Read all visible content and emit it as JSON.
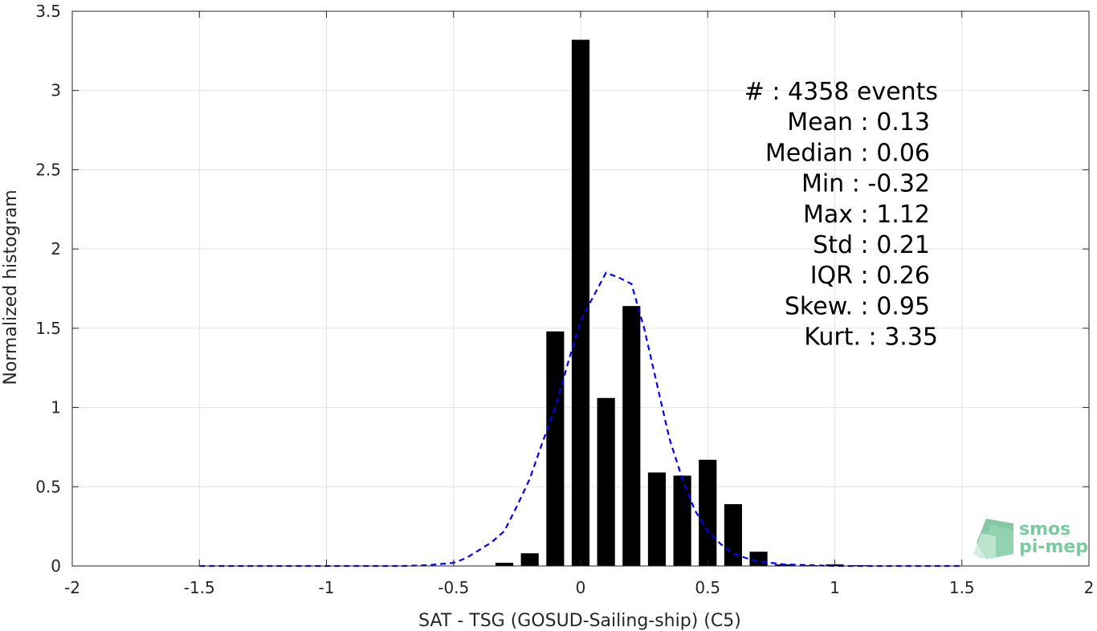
{
  "chart_data": {
    "type": "bar",
    "xlabel": "SAT - TSG (GOSUD-Sailing-ship) (C5)",
    "ylabel": "Normalized histogram",
    "xlim": [
      -2,
      2
    ],
    "ylim": [
      0,
      3.5
    ],
    "xticks": [
      -2,
      -1.5,
      -1,
      -0.5,
      0,
      0.5,
      1,
      1.5,
      2
    ],
    "xtick_labels": [
      "-2",
      "-1.5",
      "-1",
      "-0.5",
      "0",
      "0.5",
      "1",
      "1.5",
      "2"
    ],
    "yticks": [
      0,
      0.5,
      1,
      1.5,
      2,
      2.5,
      3,
      3.5
    ],
    "ytick_labels": [
      "0",
      "0.5",
      "1",
      "1.5",
      "2",
      "2.5",
      "3",
      "3.5"
    ],
    "grid": true,
    "bar_width": 0.07,
    "bar_color": "#000000",
    "bars": {
      "x": [
        -0.3,
        -0.2,
        -0.1,
        0,
        0.1,
        0.2,
        0.3,
        0.4,
        0.5,
        0.6,
        0.7,
        0.8,
        0.9,
        1.0,
        1.1
      ],
      "values": [
        0.02,
        0.08,
        1.48,
        3.32,
        1.06,
        1.64,
        0.59,
        0.57,
        0.67,
        0.39,
        0.09,
        0.01,
        0.005,
        0.01,
        0.005
      ]
    },
    "fit_curve": {
      "style": "dashed",
      "color": "#0000ff",
      "x": [
        -1.5,
        -1.4,
        -1.3,
        -1.2,
        -1.1,
        -1.0,
        -0.9,
        -0.8,
        -0.7,
        -0.6,
        -0.5,
        -0.45,
        -0.4,
        -0.35,
        -0.3,
        -0.25,
        -0.2,
        -0.15,
        -0.1,
        -0.05,
        0.0,
        0.05,
        0.1,
        0.15,
        0.2,
        0.25,
        0.3,
        0.35,
        0.4,
        0.45,
        0.5,
        0.55,
        0.6,
        0.65,
        0.7,
        0.75,
        0.8,
        0.9,
        1.0,
        1.1,
        1.2,
        1.3,
        1.4,
        1.5
      ],
      "y": [
        0,
        0,
        0,
        0,
        0,
        0,
        0,
        0,
        0,
        0.005,
        0.02,
        0.05,
        0.1,
        0.15,
        0.22,
        0.38,
        0.55,
        0.78,
        1.0,
        1.28,
        1.55,
        1.7,
        1.85,
        1.82,
        1.78,
        1.5,
        1.15,
        0.8,
        0.55,
        0.35,
        0.22,
        0.14,
        0.08,
        0.05,
        0.03,
        0.02,
        0.01,
        0.005,
        0,
        0,
        0,
        0,
        0,
        0
      ]
    },
    "stats_lines": [
      "#  : 4358 events",
      "Mean : 0.13",
      "Median : 0.06",
      "Min : -0.32",
      "Max : 1.12",
      "Std : 0.21",
      "IQR : 0.26",
      "Skew. : 0.95",
      "Kurt. : 3.35"
    ]
  },
  "logo": {
    "line1": "smos",
    "line2": "pi-mep"
  }
}
